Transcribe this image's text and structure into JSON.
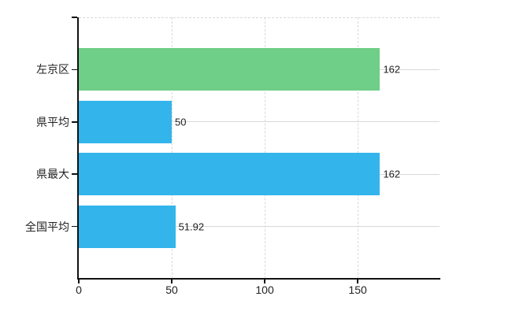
{
  "chart": {
    "background_color": "#ffffff",
    "axis_color": "#111111",
    "grid_color": "#d9d9d9",
    "text_color": "#222222"
  },
  "chart_data": {
    "type": "bar",
    "orientation": "horizontal",
    "title": "",
    "xlabel": "",
    "ylabel": "",
    "legend": "none",
    "grid": "on",
    "categories": [
      "左京区",
      "県平均",
      "県最大",
      "全国平均"
    ],
    "values": [
      162,
      50,
      162,
      51.92
    ],
    "value_labels": [
      "162",
      "50",
      "162",
      "51.92"
    ],
    "bar_colors": [
      "#6fce87",
      "#33b5ec",
      "#33b5ec",
      "#33b5ec"
    ],
    "highlight_color": "#6fce87",
    "series_color": "#33b5ec",
    "x_tick_values": [
      0,
      50,
      100,
      150
    ],
    "x_tick_labels": [
      "0",
      "50",
      "100",
      "150"
    ],
    "xlim": [
      0,
      194
    ]
  }
}
